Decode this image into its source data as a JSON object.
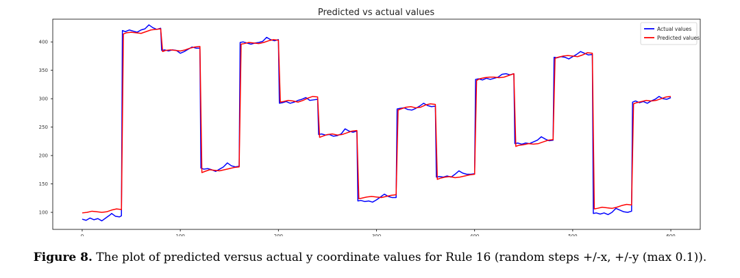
{
  "chart_data": {
    "type": "line",
    "title": "Predicted vs actual values",
    "xlabel": "",
    "ylabel": "",
    "xlim": [
      -30,
      630
    ],
    "ylim": [
      70,
      440
    ],
    "xticks": [
      0,
      100,
      200,
      300,
      400,
      500,
      600
    ],
    "yticks": [
      100,
      150,
      200,
      250,
      300,
      350,
      400
    ],
    "legend_position": "top-right",
    "series": [
      {
        "name": "Actual values",
        "color": "#0000ff",
        "points": [
          [
            0,
            88
          ],
          [
            4,
            86
          ],
          [
            8,
            90
          ],
          [
            12,
            87
          ],
          [
            16,
            89
          ],
          [
            20,
            85
          ],
          [
            24,
            90
          ],
          [
            28,
            95
          ],
          [
            30,
            98
          ],
          [
            34,
            93
          ],
          [
            38,
            92
          ],
          [
            40,
            94
          ],
          [
            41,
            420
          ],
          [
            44,
            418
          ],
          [
            48,
            421
          ],
          [
            52,
            419
          ],
          [
            56,
            417
          ],
          [
            60,
            421
          ],
          [
            64,
            423
          ],
          [
            68,
            430
          ],
          [
            72,
            425
          ],
          [
            76,
            422
          ],
          [
            80,
            424
          ],
          [
            81,
            385
          ],
          [
            84,
            386
          ],
          [
            88,
            384
          ],
          [
            92,
            386
          ],
          [
            96,
            385
          ],
          [
            100,
            380
          ],
          [
            104,
            383
          ],
          [
            108,
            387
          ],
          [
            112,
            391
          ],
          [
            116,
            389
          ],
          [
            120,
            389
          ],
          [
            121,
            178
          ],
          [
            124,
            176
          ],
          [
            128,
            177
          ],
          [
            132,
            175
          ],
          [
            136,
            172
          ],
          [
            140,
            176
          ],
          [
            144,
            180
          ],
          [
            148,
            187
          ],
          [
            152,
            182
          ],
          [
            156,
            180
          ],
          [
            160,
            181
          ],
          [
            161,
            399
          ],
          [
            164,
            400
          ],
          [
            168,
            398
          ],
          [
            172,
            396
          ],
          [
            176,
            398
          ],
          [
            180,
            399
          ],
          [
            184,
            401
          ],
          [
            188,
            408
          ],
          [
            192,
            404
          ],
          [
            196,
            402
          ],
          [
            200,
            404
          ],
          [
            201,
            292
          ],
          [
            204,
            293
          ],
          [
            208,
            295
          ],
          [
            212,
            292
          ],
          [
            216,
            294
          ],
          [
            220,
            297
          ],
          [
            224,
            299
          ],
          [
            228,
            302
          ],
          [
            232,
            297
          ],
          [
            236,
            298
          ],
          [
            240,
            299
          ],
          [
            241,
            237
          ],
          [
            244,
            238
          ],
          [
            248,
            236
          ],
          [
            252,
            237
          ],
          [
            256,
            234
          ],
          [
            260,
            235
          ],
          [
            264,
            238
          ],
          [
            268,
            247
          ],
          [
            272,
            243
          ],
          [
            276,
            241
          ],
          [
            280,
            243
          ],
          [
            281,
            120
          ],
          [
            284,
            121
          ],
          [
            288,
            119
          ],
          [
            292,
            120
          ],
          [
            296,
            118
          ],
          [
            300,
            122
          ],
          [
            304,
            127
          ],
          [
            308,
            132
          ],
          [
            312,
            128
          ],
          [
            316,
            126
          ],
          [
            320,
            126
          ],
          [
            321,
            282
          ],
          [
            324,
            283
          ],
          [
            328,
            284
          ],
          [
            332,
            281
          ],
          [
            336,
            280
          ],
          [
            340,
            283
          ],
          [
            344,
            287
          ],
          [
            348,
            292
          ],
          [
            352,
            288
          ],
          [
            356,
            286
          ],
          [
            360,
            287
          ],
          [
            361,
            162
          ],
          [
            364,
            163
          ],
          [
            368,
            162
          ],
          [
            372,
            164
          ],
          [
            376,
            162
          ],
          [
            380,
            167
          ],
          [
            384,
            173
          ],
          [
            388,
            169
          ],
          [
            392,
            167
          ],
          [
            396,
            167
          ],
          [
            400,
            168
          ],
          [
            401,
            334
          ],
          [
            404,
            335
          ],
          [
            408,
            333
          ],
          [
            412,
            336
          ],
          [
            416,
            334
          ],
          [
            420,
            336
          ],
          [
            424,
            338
          ],
          [
            428,
            343
          ],
          [
            432,
            344
          ],
          [
            436,
            342
          ],
          [
            440,
            344
          ],
          [
            441,
            221
          ],
          [
            444,
            222
          ],
          [
            448,
            220
          ],
          [
            452,
            222
          ],
          [
            456,
            221
          ],
          [
            460,
            224
          ],
          [
            464,
            227
          ],
          [
            468,
            233
          ],
          [
            472,
            229
          ],
          [
            476,
            226
          ],
          [
            480,
            227
          ],
          [
            481,
            373
          ],
          [
            484,
            372
          ],
          [
            488,
            374
          ],
          [
            492,
            373
          ],
          [
            496,
            370
          ],
          [
            500,
            374
          ],
          [
            504,
            378
          ],
          [
            508,
            383
          ],
          [
            512,
            380
          ],
          [
            516,
            377
          ],
          [
            520,
            378
          ],
          [
            521,
            98
          ],
          [
            524,
            99
          ],
          [
            528,
            97
          ],
          [
            532,
            99
          ],
          [
            536,
            96
          ],
          [
            540,
            100
          ],
          [
            544,
            107
          ],
          [
            548,
            104
          ],
          [
            552,
            101
          ],
          [
            556,
            100
          ],
          [
            560,
            102
          ],
          [
            561,
            294
          ],
          [
            564,
            296
          ],
          [
            568,
            293
          ],
          [
            572,
            295
          ],
          [
            576,
            292
          ],
          [
            580,
            296
          ],
          [
            584,
            299
          ],
          [
            588,
            304
          ],
          [
            592,
            300
          ],
          [
            596,
            299
          ],
          [
            600,
            302
          ]
        ]
      },
      {
        "name": "Predicted values",
        "color": "#ff0000",
        "points": [
          [
            0,
            99
          ],
          [
            5,
            100
          ],
          [
            10,
            102
          ],
          [
            15,
            101
          ],
          [
            20,
            100
          ],
          [
            25,
            101
          ],
          [
            30,
            104
          ],
          [
            35,
            106
          ],
          [
            40,
            105
          ],
          [
            42,
            414
          ],
          [
            45,
            416
          ],
          [
            50,
            417
          ],
          [
            55,
            416
          ],
          [
            60,
            415
          ],
          [
            65,
            418
          ],
          [
            70,
            421
          ],
          [
            75,
            422
          ],
          [
            80,
            423
          ],
          [
            82,
            383
          ],
          [
            85,
            385
          ],
          [
            90,
            386
          ],
          [
            95,
            385
          ],
          [
            100,
            384
          ],
          [
            105,
            386
          ],
          [
            110,
            389
          ],
          [
            115,
            391
          ],
          [
            120,
            392
          ],
          [
            122,
            170
          ],
          [
            125,
            172
          ],
          [
            130,
            175
          ],
          [
            135,
            174
          ],
          [
            140,
            173
          ],
          [
            145,
            175
          ],
          [
            150,
            177
          ],
          [
            155,
            179
          ],
          [
            160,
            180
          ],
          [
            162,
            396
          ],
          [
            165,
            397
          ],
          [
            170,
            399
          ],
          [
            175,
            398
          ],
          [
            180,
            397
          ],
          [
            185,
            399
          ],
          [
            190,
            402
          ],
          [
            195,
            404
          ],
          [
            200,
            403
          ],
          [
            202,
            294
          ],
          [
            205,
            295
          ],
          [
            210,
            297
          ],
          [
            215,
            296
          ],
          [
            220,
            294
          ],
          [
            225,
            297
          ],
          [
            230,
            301
          ],
          [
            235,
            304
          ],
          [
            240,
            303
          ],
          [
            242,
            232
          ],
          [
            245,
            234
          ],
          [
            250,
            237
          ],
          [
            255,
            238
          ],
          [
            260,
            236
          ],
          [
            265,
            237
          ],
          [
            270,
            240
          ],
          [
            275,
            243
          ],
          [
            280,
            244
          ],
          [
            282,
            124
          ],
          [
            285,
            125
          ],
          [
            290,
            127
          ],
          [
            295,
            128
          ],
          [
            300,
            127
          ],
          [
            305,
            126
          ],
          [
            310,
            128
          ],
          [
            315,
            130
          ],
          [
            320,
            131
          ],
          [
            322,
            280
          ],
          [
            325,
            282
          ],
          [
            330,
            285
          ],
          [
            335,
            286
          ],
          [
            340,
            284
          ],
          [
            345,
            285
          ],
          [
            350,
            289
          ],
          [
            355,
            291
          ],
          [
            360,
            290
          ],
          [
            362,
            158
          ],
          [
            365,
            160
          ],
          [
            370,
            162
          ],
          [
            375,
            163
          ],
          [
            380,
            161
          ],
          [
            385,
            162
          ],
          [
            390,
            164
          ],
          [
            395,
            166
          ],
          [
            400,
            167
          ],
          [
            402,
            332
          ],
          [
            405,
            335
          ],
          [
            410,
            337
          ],
          [
            415,
            338
          ],
          [
            420,
            338
          ],
          [
            425,
            337
          ],
          [
            430,
            338
          ],
          [
            435,
            341
          ],
          [
            440,
            344
          ],
          [
            442,
            216
          ],
          [
            445,
            218
          ],
          [
            450,
            219
          ],
          [
            455,
            221
          ],
          [
            460,
            220
          ],
          [
            465,
            221
          ],
          [
            470,
            224
          ],
          [
            475,
            227
          ],
          [
            480,
            228
          ],
          [
            482,
            371
          ],
          [
            485,
            373
          ],
          [
            490,
            375
          ],
          [
            495,
            376
          ],
          [
            500,
            375
          ],
          [
            505,
            374
          ],
          [
            510,
            377
          ],
          [
            515,
            381
          ],
          [
            520,
            380
          ],
          [
            522,
            106
          ],
          [
            525,
            107
          ],
          [
            530,
            109
          ],
          [
            535,
            108
          ],
          [
            540,
            107
          ],
          [
            545,
            109
          ],
          [
            550,
            112
          ],
          [
            555,
            114
          ],
          [
            560,
            113
          ],
          [
            562,
            291
          ],
          [
            565,
            293
          ],
          [
            570,
            295
          ],
          [
            575,
            297
          ],
          [
            580,
            296
          ],
          [
            585,
            297
          ],
          [
            590,
            300
          ],
          [
            595,
            303
          ],
          [
            600,
            304
          ]
        ]
      }
    ]
  },
  "caption": {
    "label": "Figure 8.",
    "text": " The plot of predicted versus actual y coordinate values for Rule 16 (random steps +/-x, +/-y (max 0.1))."
  }
}
